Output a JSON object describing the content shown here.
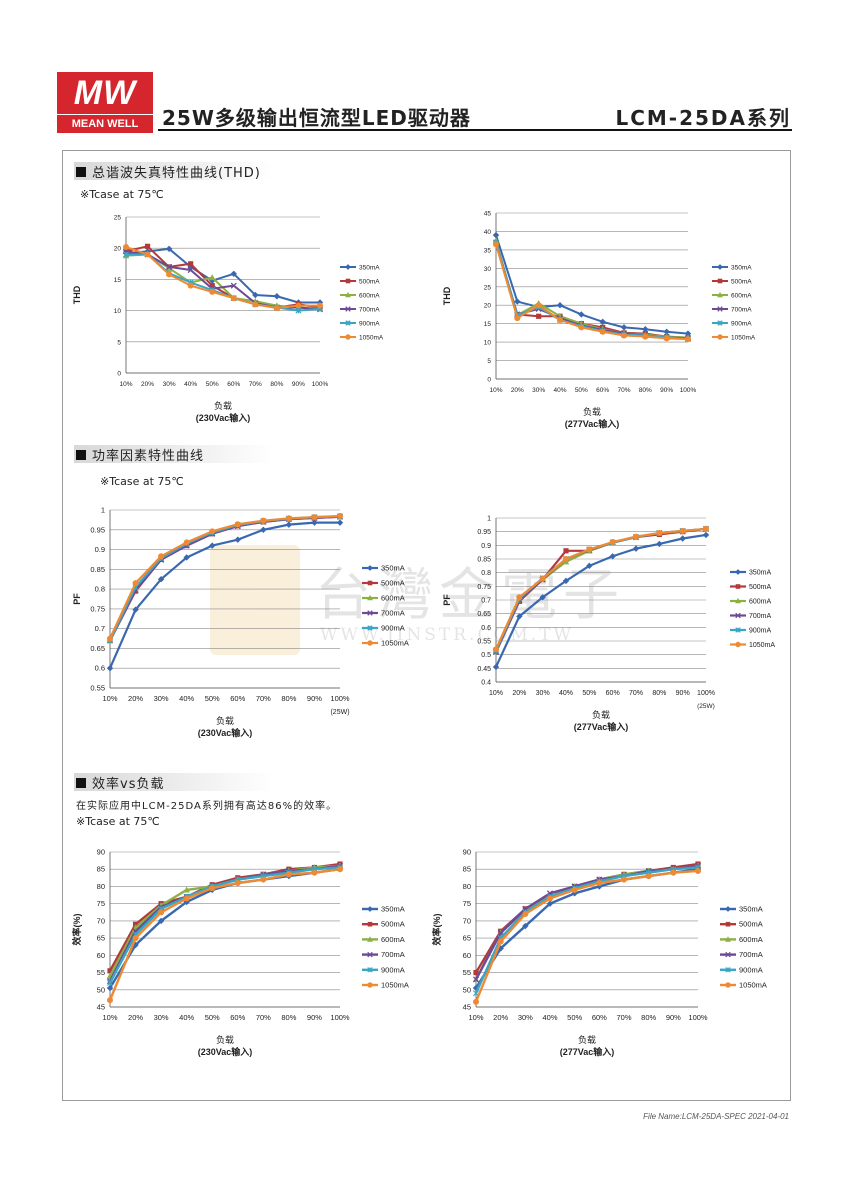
{
  "header": {
    "logo_text": "MW",
    "logo_sub": "MEAN WELL",
    "title": "25W多级输出恒流型LED驱动器",
    "model": "LCM-25DA系列"
  },
  "watermark": {
    "cn": "台灣金電子",
    "en": "WWW.JINSTR.COM.TW"
  },
  "sections": {
    "thd": {
      "title": "总谐波失真特性曲线(THD)",
      "note": "※Tcase at 75℃"
    },
    "pf": {
      "title": "功率因素特性曲线",
      "note": "※Tcase at 75℃"
    },
    "eff": {
      "title": "效率vs负载",
      "desc": "在实际应用中LCM-25DA系列拥有高达86%的效率。",
      "note": "※Tcase at 75℃"
    }
  },
  "series_colors": {
    "350mA": "#3a68b0",
    "500mA": "#b23a3a",
    "600mA": "#8db044",
    "700mA": "#6e4a96",
    "900mA": "#3ba6c4",
    "1050mA": "#ee8a33"
  },
  "footer": "File Name:LCM-25DA-SPEC   2021-04-01",
  "chart_data": [
    {
      "type": "line",
      "x": [
        "10%",
        "20%",
        "30%",
        "40%",
        "50%",
        "60%",
        "70%",
        "80%",
        "90%",
        "100%"
      ],
      "ylabel": "THD",
      "xlabel": "负载",
      "xsub": "(230Vac输入)",
      "ylim": [
        0,
        25
      ],
      "yticks": [
        0,
        5,
        10,
        15,
        20,
        25
      ],
      "ytick_labels": [
        "0",
        "5",
        "10",
        "15",
        "20",
        "25"
      ],
      "series": [
        {
          "name": "350mA",
          "values": [
            19.2,
            19.5,
            19.9,
            17,
            14.8,
            15.9,
            12.5,
            12.3,
            11.3,
            11.3
          ]
        },
        {
          "name": "500mA",
          "values": [
            19.5,
            20.3,
            17,
            17.5,
            14,
            12,
            11,
            10.5,
            11,
            10.5
          ]
        },
        {
          "name": "600mA",
          "values": [
            18.8,
            19,
            16.8,
            14.5,
            15.3,
            12,
            11.5,
            10.8,
            10.5,
            10.3
          ]
        },
        {
          "name": "700mA",
          "values": [
            19.5,
            19,
            17,
            16.5,
            13.5,
            14,
            11.2,
            10.5,
            10.5,
            10.2
          ]
        },
        {
          "name": "900mA",
          "values": [
            19,
            19,
            16,
            14.5,
            13.3,
            12,
            11,
            10.5,
            10,
            10.3
          ]
        },
        {
          "name": "1050mA",
          "values": [
            20.2,
            19,
            15.8,
            14,
            13,
            12,
            11,
            10.4,
            10.8,
            10.8
          ]
        }
      ]
    },
    {
      "type": "line",
      "x": [
        "10%",
        "20%",
        "30%",
        "40%",
        "50%",
        "60%",
        "70%",
        "80%",
        "90%",
        "100%"
      ],
      "ylabel": "THD",
      "xlabel": "负载",
      "xsub": "(277Vac输入)",
      "ylim": [
        0,
        45
      ],
      "yticks": [
        0,
        5,
        10,
        15,
        20,
        25,
        30,
        35,
        40,
        45
      ],
      "ytick_labels": [
        "0",
        "5",
        "10",
        "15",
        "20",
        "25",
        "30",
        "35",
        "40",
        "45"
      ],
      "series": [
        {
          "name": "350mA",
          "values": [
            39,
            21,
            19.5,
            20,
            17.5,
            15.5,
            14,
            13.5,
            12.8,
            12.3
          ]
        },
        {
          "name": "500mA",
          "values": [
            37,
            17.5,
            17,
            17,
            15,
            14,
            12.5,
            12.3,
            11.5,
            11.2
          ]
        },
        {
          "name": "600mA",
          "values": [
            37.5,
            17.3,
            20.5,
            17,
            15,
            13.5,
            12.3,
            12,
            11.5,
            11.2
          ]
        },
        {
          "name": "700mA",
          "values": [
            37,
            17.5,
            19,
            16.5,
            14.5,
            13.3,
            12.3,
            11.8,
            11.3,
            11
          ]
        },
        {
          "name": "900mA",
          "values": [
            37,
            17.3,
            19.5,
            16,
            14.3,
            13,
            12,
            11.8,
            11.3,
            10.8
          ]
        },
        {
          "name": "1050mA",
          "values": [
            36.5,
            16.5,
            20,
            16,
            14,
            12.8,
            11.8,
            11.5,
            11,
            10.8
          ]
        }
      ]
    },
    {
      "type": "line",
      "x": [
        "10%",
        "20%",
        "30%",
        "40%",
        "50%",
        "60%",
        "70%",
        "80%",
        "90%",
        "100%"
      ],
      "ylabel": "PF",
      "xlabel": "负载",
      "xsub": "(230Vac输入)",
      "xnote": "(25W)",
      "ylim": [
        0.55,
        1.0
      ],
      "yticks": [
        0.55,
        0.6,
        0.65,
        0.7,
        0.75,
        0.8,
        0.85,
        0.9,
        0.95,
        1.0
      ],
      "ytick_labels": [
        "0.55",
        "0.6",
        "0.65",
        "0.7",
        "0.75",
        "0.8",
        "0.85",
        "0.9",
        "0.95",
        "1"
      ],
      "series": [
        {
          "name": "350mA",
          "values": [
            0.6,
            0.748,
            0.825,
            0.88,
            0.91,
            0.925,
            0.95,
            0.963,
            0.968,
            0.968
          ]
        },
        {
          "name": "500mA",
          "values": [
            0.67,
            0.795,
            0.875,
            0.91,
            0.94,
            0.96,
            0.97,
            0.977,
            0.98,
            0.983
          ]
        },
        {
          "name": "600mA",
          "values": [
            0.67,
            0.8,
            0.877,
            0.912,
            0.942,
            0.962,
            0.971,
            0.978,
            0.981,
            0.983
          ]
        },
        {
          "name": "700mA",
          "values": [
            0.67,
            0.797,
            0.874,
            0.91,
            0.94,
            0.959,
            0.97,
            0.977,
            0.98,
            0.983
          ]
        },
        {
          "name": "900mA",
          "values": [
            0.67,
            0.805,
            0.878,
            0.915,
            0.943,
            0.962,
            0.972,
            0.978,
            0.982,
            0.984
          ]
        },
        {
          "name": "1050mA",
          "values": [
            0.675,
            0.815,
            0.883,
            0.918,
            0.946,
            0.964,
            0.973,
            0.979,
            0.982,
            0.985
          ]
        }
      ]
    },
    {
      "type": "line",
      "x": [
        "10%",
        "20%",
        "30%",
        "40%",
        "50%",
        "60%",
        "70%",
        "80%",
        "90%",
        "100%"
      ],
      "ylabel": "PF",
      "xlabel": "负载",
      "xsub": "(277Vac输入)",
      "xnote": "(25W)",
      "ylim": [
        0.4,
        1.0
      ],
      "yticks": [
        0.4,
        0.45,
        0.5,
        0.55,
        0.6,
        0.65,
        0.7,
        0.75,
        0.8,
        0.85,
        0.9,
        0.95,
        1.0
      ],
      "ytick_labels": [
        "0.4",
        "0.45",
        "0.5",
        "0.55",
        "0.6",
        "0.65",
        "0.7",
        "0.75",
        "0.8",
        "0.85",
        "0.9",
        "0.95",
        "1"
      ],
      "series": [
        {
          "name": "350mA",
          "values": [
            0.455,
            0.64,
            0.71,
            0.77,
            0.825,
            0.86,
            0.888,
            0.905,
            0.925,
            0.938
          ]
        },
        {
          "name": "500mA",
          "values": [
            0.51,
            0.695,
            0.775,
            0.88,
            0.88,
            0.91,
            0.93,
            0.94,
            0.95,
            0.96
          ]
        },
        {
          "name": "600mA",
          "values": [
            0.51,
            0.7,
            0.775,
            0.84,
            0.88,
            0.91,
            0.93,
            0.945,
            0.952,
            0.96
          ]
        },
        {
          "name": "700mA",
          "values": [
            0.51,
            0.7,
            0.775,
            0.85,
            0.883,
            0.91,
            0.93,
            0.945,
            0.952,
            0.96
          ]
        },
        {
          "name": "900mA",
          "values": [
            0.515,
            0.705,
            0.78,
            0.85,
            0.885,
            0.91,
            0.93,
            0.945,
            0.953,
            0.96
          ]
        },
        {
          "name": "1050mA",
          "values": [
            0.52,
            0.71,
            0.778,
            0.85,
            0.885,
            0.912,
            0.932,
            0.945,
            0.953,
            0.96
          ]
        }
      ]
    },
    {
      "type": "line",
      "x": [
        "10%",
        "20%",
        "30%",
        "40%",
        "50%",
        "60%",
        "70%",
        "80%",
        "90%",
        "100%"
      ],
      "ylabel": "效率(%)",
      "xlabel": "负载",
      "xsub": "(230Vac输入)",
      "ylim": [
        45,
        90
      ],
      "yticks": [
        45,
        50,
        55,
        60,
        65,
        70,
        75,
        80,
        85,
        90
      ],
      "ytick_labels": [
        "45",
        "50",
        "55",
        "60",
        "65",
        "70",
        "75",
        "80",
        "85",
        "90"
      ],
      "series": [
        {
          "name": "350mA",
          "values": [
            50.5,
            63,
            70,
            75.5,
            79,
            81,
            82,
            83,
            84,
            85
          ]
        },
        {
          "name": "500mA",
          "values": [
            55.5,
            69,
            75,
            77,
            80.5,
            82.5,
            83.5,
            85,
            85.5,
            86.5
          ]
        },
        {
          "name": "600mA",
          "values": [
            54,
            68,
            74.5,
            79,
            80,
            82,
            83.5,
            84.5,
            85.5,
            86
          ]
        },
        {
          "name": "700mA",
          "values": [
            52.5,
            67,
            74,
            77,
            80,
            82,
            83.5,
            84.5,
            85,
            86
          ]
        },
        {
          "name": "900mA",
          "values": [
            52,
            66,
            73.5,
            77,
            80,
            82,
            83,
            84,
            85,
            85.5
          ]
        },
        {
          "name": "1050mA",
          "values": [
            47,
            65,
            72.5,
            76.5,
            79.5,
            81,
            82,
            83.5,
            84,
            85
          ]
        }
      ]
    },
    {
      "type": "line",
      "x": [
        "10%",
        "20%",
        "30%",
        "40%",
        "50%",
        "60%",
        "70%",
        "80%",
        "90%",
        "100%"
      ],
      "ylabel": "效率(%)",
      "xlabel": "负载",
      "xsub": "(277Vac输入)",
      "ylim": [
        45,
        90
      ],
      "yticks": [
        45,
        50,
        55,
        60,
        65,
        70,
        75,
        80,
        85,
        90
      ],
      "ytick_labels": [
        "45",
        "50",
        "55",
        "60",
        "65",
        "70",
        "75",
        "80",
        "85",
        "90"
      ],
      "series": [
        {
          "name": "350mA",
          "values": [
            50.5,
            62,
            68.5,
            75,
            78,
            80,
            82,
            83,
            84,
            85
          ]
        },
        {
          "name": "500mA",
          "values": [
            55,
            67,
            73.5,
            77,
            80,
            82,
            83.5,
            84.5,
            85.5,
            86.5
          ]
        },
        {
          "name": "600mA",
          "values": [
            53,
            66.5,
            73,
            77,
            80,
            82,
            83.5,
            84.5,
            85,
            86
          ]
        },
        {
          "name": "700mA",
          "values": [
            53,
            66.5,
            73.5,
            78,
            80,
            82,
            83,
            84.5,
            85,
            86
          ]
        },
        {
          "name": "900mA",
          "values": [
            49,
            65,
            72.5,
            77,
            79.5,
            81.5,
            83,
            84,
            85,
            85.5
          ]
        },
        {
          "name": "1050mA",
          "values": [
            46.5,
            64,
            72,
            76.5,
            79,
            81,
            82,
            83,
            84,
            84.5
          ]
        }
      ]
    }
  ]
}
